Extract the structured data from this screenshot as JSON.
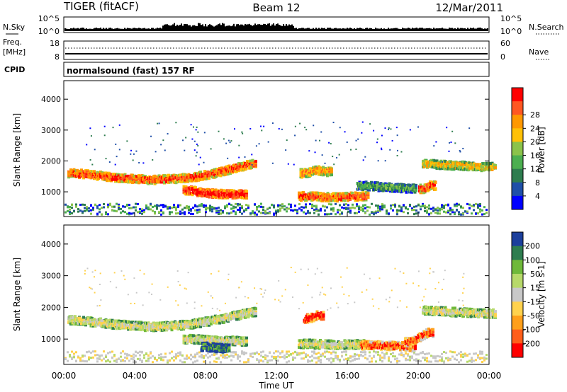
{
  "header": {
    "radar": "TIGER (fitACF)",
    "beam": "Beam 12",
    "date": "12/Mar/2011"
  },
  "nsky_panel": {
    "left_label": "N.Sky",
    "right_label": "N.Search",
    "left_ticks": [
      "10^5",
      "10^0"
    ],
    "right_ticks": [
      "10^5",
      "10^0"
    ]
  },
  "freq_panel": {
    "left_label_line1": "Freq.",
    "left_label_line2": "[MHz]",
    "right_label": "Nave",
    "left_ticks": [
      "18",
      "8"
    ],
    "right_ticks": [
      "60",
      "0"
    ]
  },
  "cpid_panel": {
    "label": "CPID",
    "text": "normalsound (fast) 157 RF"
  },
  "chart_data": [
    {
      "type": "heatmap",
      "name": "power",
      "ylabel": "Slant Range [km]",
      "ylim": [
        200,
        4600
      ],
      "yticks": [
        "1000",
        "2000",
        "3000",
        "4000"
      ],
      "colorbar_label": "Power [dB]",
      "colorbar_ticks": [
        "4",
        "8",
        "12",
        "16",
        "20",
        "24",
        "28"
      ],
      "colors": [
        "#0000ff",
        "#1f4fa8",
        "#2e7d4f",
        "#4caf50",
        "#8bc34a",
        "#ffc107",
        "#ff9800",
        "#ff5722",
        "#ff0000"
      ],
      "bands": [
        {
          "x": [
            0.5,
            1.5,
            3,
            5,
            7,
            8.5,
            9.5,
            10.5
          ],
          "y": [
            1600,
            1550,
            1450,
            1380,
            1450,
            1600,
            1750,
            1900
          ],
          "level": 7
        },
        {
          "x": [
            7,
            8,
            9,
            10
          ],
          "y": [
            1050,
            950,
            920,
            920
          ],
          "level": 8
        },
        {
          "x": [
            13.5,
            15,
            16.8
          ],
          "y": [
            850,
            820,
            850
          ],
          "level": 7
        },
        {
          "x": [
            13.6,
            14.2,
            14.8
          ],
          "y": [
            1600,
            1700,
            1650
          ],
          "level": 6
        },
        {
          "x": [
            16.8,
            18,
            19.5
          ],
          "y": [
            1200,
            1150,
            1100
          ],
          "level": 3
        },
        {
          "x": [
            20.5,
            22,
            24
          ],
          "y": [
            1900,
            1850,
            1800
          ],
          "level": 5
        },
        {
          "x": [
            20.3,
            20.6
          ],
          "y": [
            1100,
            1200
          ],
          "level": 7
        }
      ]
    },
    {
      "type": "heatmap",
      "name": "velocity",
      "xlabel": "Time UT",
      "xticks": [
        "00:00",
        "04:00",
        "08:00",
        "12:00",
        "16:00",
        "20:00",
        "00:00"
      ],
      "xlim": [
        0,
        24
      ],
      "ylabel": "Slant Range [km]",
      "ylim": [
        200,
        4600
      ],
      "yticks": [
        "1000",
        "2000",
        "3000",
        "4000"
      ],
      "colorbar_label": "Velocity [m s-1]",
      "colorbar_ticks": [
        "200",
        "100",
        "50",
        "15",
        "-15",
        "-50",
        "-100",
        "-200"
      ],
      "colors": [
        "#1c3f9c",
        "#2e7d4f",
        "#6fb93a",
        "#b7d96a",
        "#c8c8c8",
        "#ffd24d",
        "#ff9f1a",
        "#ff5e1a",
        "#ff0000"
      ],
      "bands": [
        {
          "x": [
            0.5,
            3,
            5,
            7,
            9,
            10.5
          ],
          "y": [
            1600,
            1450,
            1380,
            1450,
            1650,
            1850
          ],
          "level": 4
        },
        {
          "x": [
            7,
            8.5,
            10
          ],
          "y": [
            1000,
            950,
            930
          ],
          "level": 4
        },
        {
          "x": [
            13.5,
            15,
            16.8
          ],
          "y": [
            850,
            820,
            830
          ],
          "level": 4
        },
        {
          "x": [
            13.8,
            14.3
          ],
          "y": [
            1650,
            1750
          ],
          "level": 8
        },
        {
          "x": [
            17,
            18.5,
            19.5
          ],
          "y": [
            800,
            780,
            760
          ],
          "level": 7
        },
        {
          "x": [
            19.5,
            20.5
          ],
          "y": [
            900,
            1200
          ],
          "level": 7
        },
        {
          "x": [
            20.5,
            22,
            24
          ],
          "y": [
            1900,
            1850,
            1800
          ],
          "level": 4
        },
        {
          "x": [
            8,
            9
          ],
          "y": [
            750,
            700
          ],
          "level": 1
        }
      ]
    }
  ]
}
